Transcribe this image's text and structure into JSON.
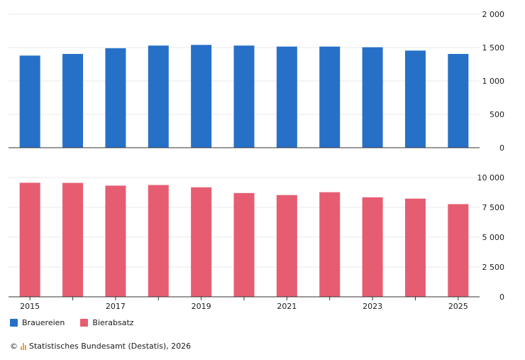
{
  "chart_data": {
    "type": "bar",
    "categories": [
      "2015",
      "2016",
      "2017",
      "2018",
      "2019",
      "2020",
      "2021",
      "2022",
      "2023",
      "2024",
      "2025"
    ],
    "x_tick_labels": [
      "2015",
      "2017",
      "2019",
      "2021",
      "2023",
      "2025"
    ],
    "panels": [
      {
        "series_name": "Brauereien",
        "color": "#2770c8",
        "values": [
          1380,
          1405,
          1490,
          1530,
          1540,
          1530,
          1515,
          1515,
          1505,
          1455,
          1405
        ],
        "ylim": [
          0,
          2000
        ],
        "yticks": [
          0,
          500,
          1000,
          1500,
          2000
        ],
        "ytick_labels": [
          "0",
          "500",
          "1 000",
          "1 500",
          "2 000"
        ]
      },
      {
        "series_name": "Bierabsatz",
        "color": "#e65d72",
        "values": [
          9560,
          9550,
          9320,
          9370,
          9180,
          8700,
          8530,
          8770,
          8340,
          8230,
          7770
        ],
        "ylim": [
          0,
          10000
        ],
        "yticks": [
          0,
          2500,
          5000,
          7500,
          10000
        ],
        "ytick_labels": [
          "0",
          "2 500",
          "5 000",
          "7 500",
          "10 000"
        ]
      }
    ],
    "legend": {
      "placement": "bottom-left"
    },
    "grid": true
  },
  "source": {
    "copyright": "©",
    "text": "Statistisches Bundesamt (Destatis), 2026"
  }
}
